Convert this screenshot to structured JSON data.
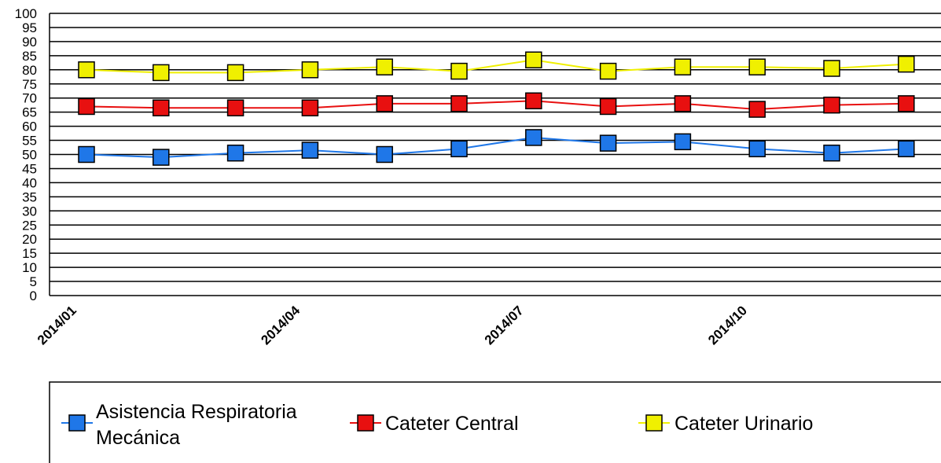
{
  "chart_data": {
    "type": "line",
    "title": "",
    "xlabel": "",
    "ylabel": "",
    "ylim": [
      0,
      100
    ],
    "yticks": [
      0,
      5,
      10,
      15,
      20,
      25,
      30,
      35,
      40,
      45,
      50,
      55,
      60,
      65,
      70,
      75,
      80,
      85,
      90,
      95,
      100
    ],
    "grid": true,
    "legend_position": "bottom",
    "x": [
      "2014/01",
      "2014/02",
      "2014/03",
      "2014/04",
      "2014/05",
      "2014/06",
      "2014/07",
      "2014/08",
      "2014/09",
      "2014/10",
      "2014/11",
      "2014/12"
    ],
    "x_tick_labels": [
      "2014/01",
      "2014/04",
      "2014/07",
      "2014/10"
    ],
    "series": [
      {
        "name": "Asistencia Respiratoria Mecánica",
        "name_lines": [
          "Asistencia Respiratoria",
          "Mecánica"
        ],
        "color": "#1f77e8",
        "values": [
          50,
          49,
          50.5,
          51.5,
          50,
          52,
          56,
          54,
          54.5,
          52,
          50.5,
          52
        ]
      },
      {
        "name": "Cateter Central",
        "name_lines": [
          "Cateter Central"
        ],
        "color": "#e81010",
        "values": [
          67,
          66.5,
          66.5,
          66.5,
          68,
          68,
          69,
          67,
          68,
          66,
          67.5,
          68
        ]
      },
      {
        "name": "Cateter Urinario",
        "name_lines": [
          "Cateter Urinario"
        ],
        "color": "#f0f000",
        "values": [
          80,
          79,
          79,
          80,
          81,
          79.5,
          83.5,
          79.5,
          81,
          81,
          80.5,
          82
        ]
      }
    ]
  }
}
